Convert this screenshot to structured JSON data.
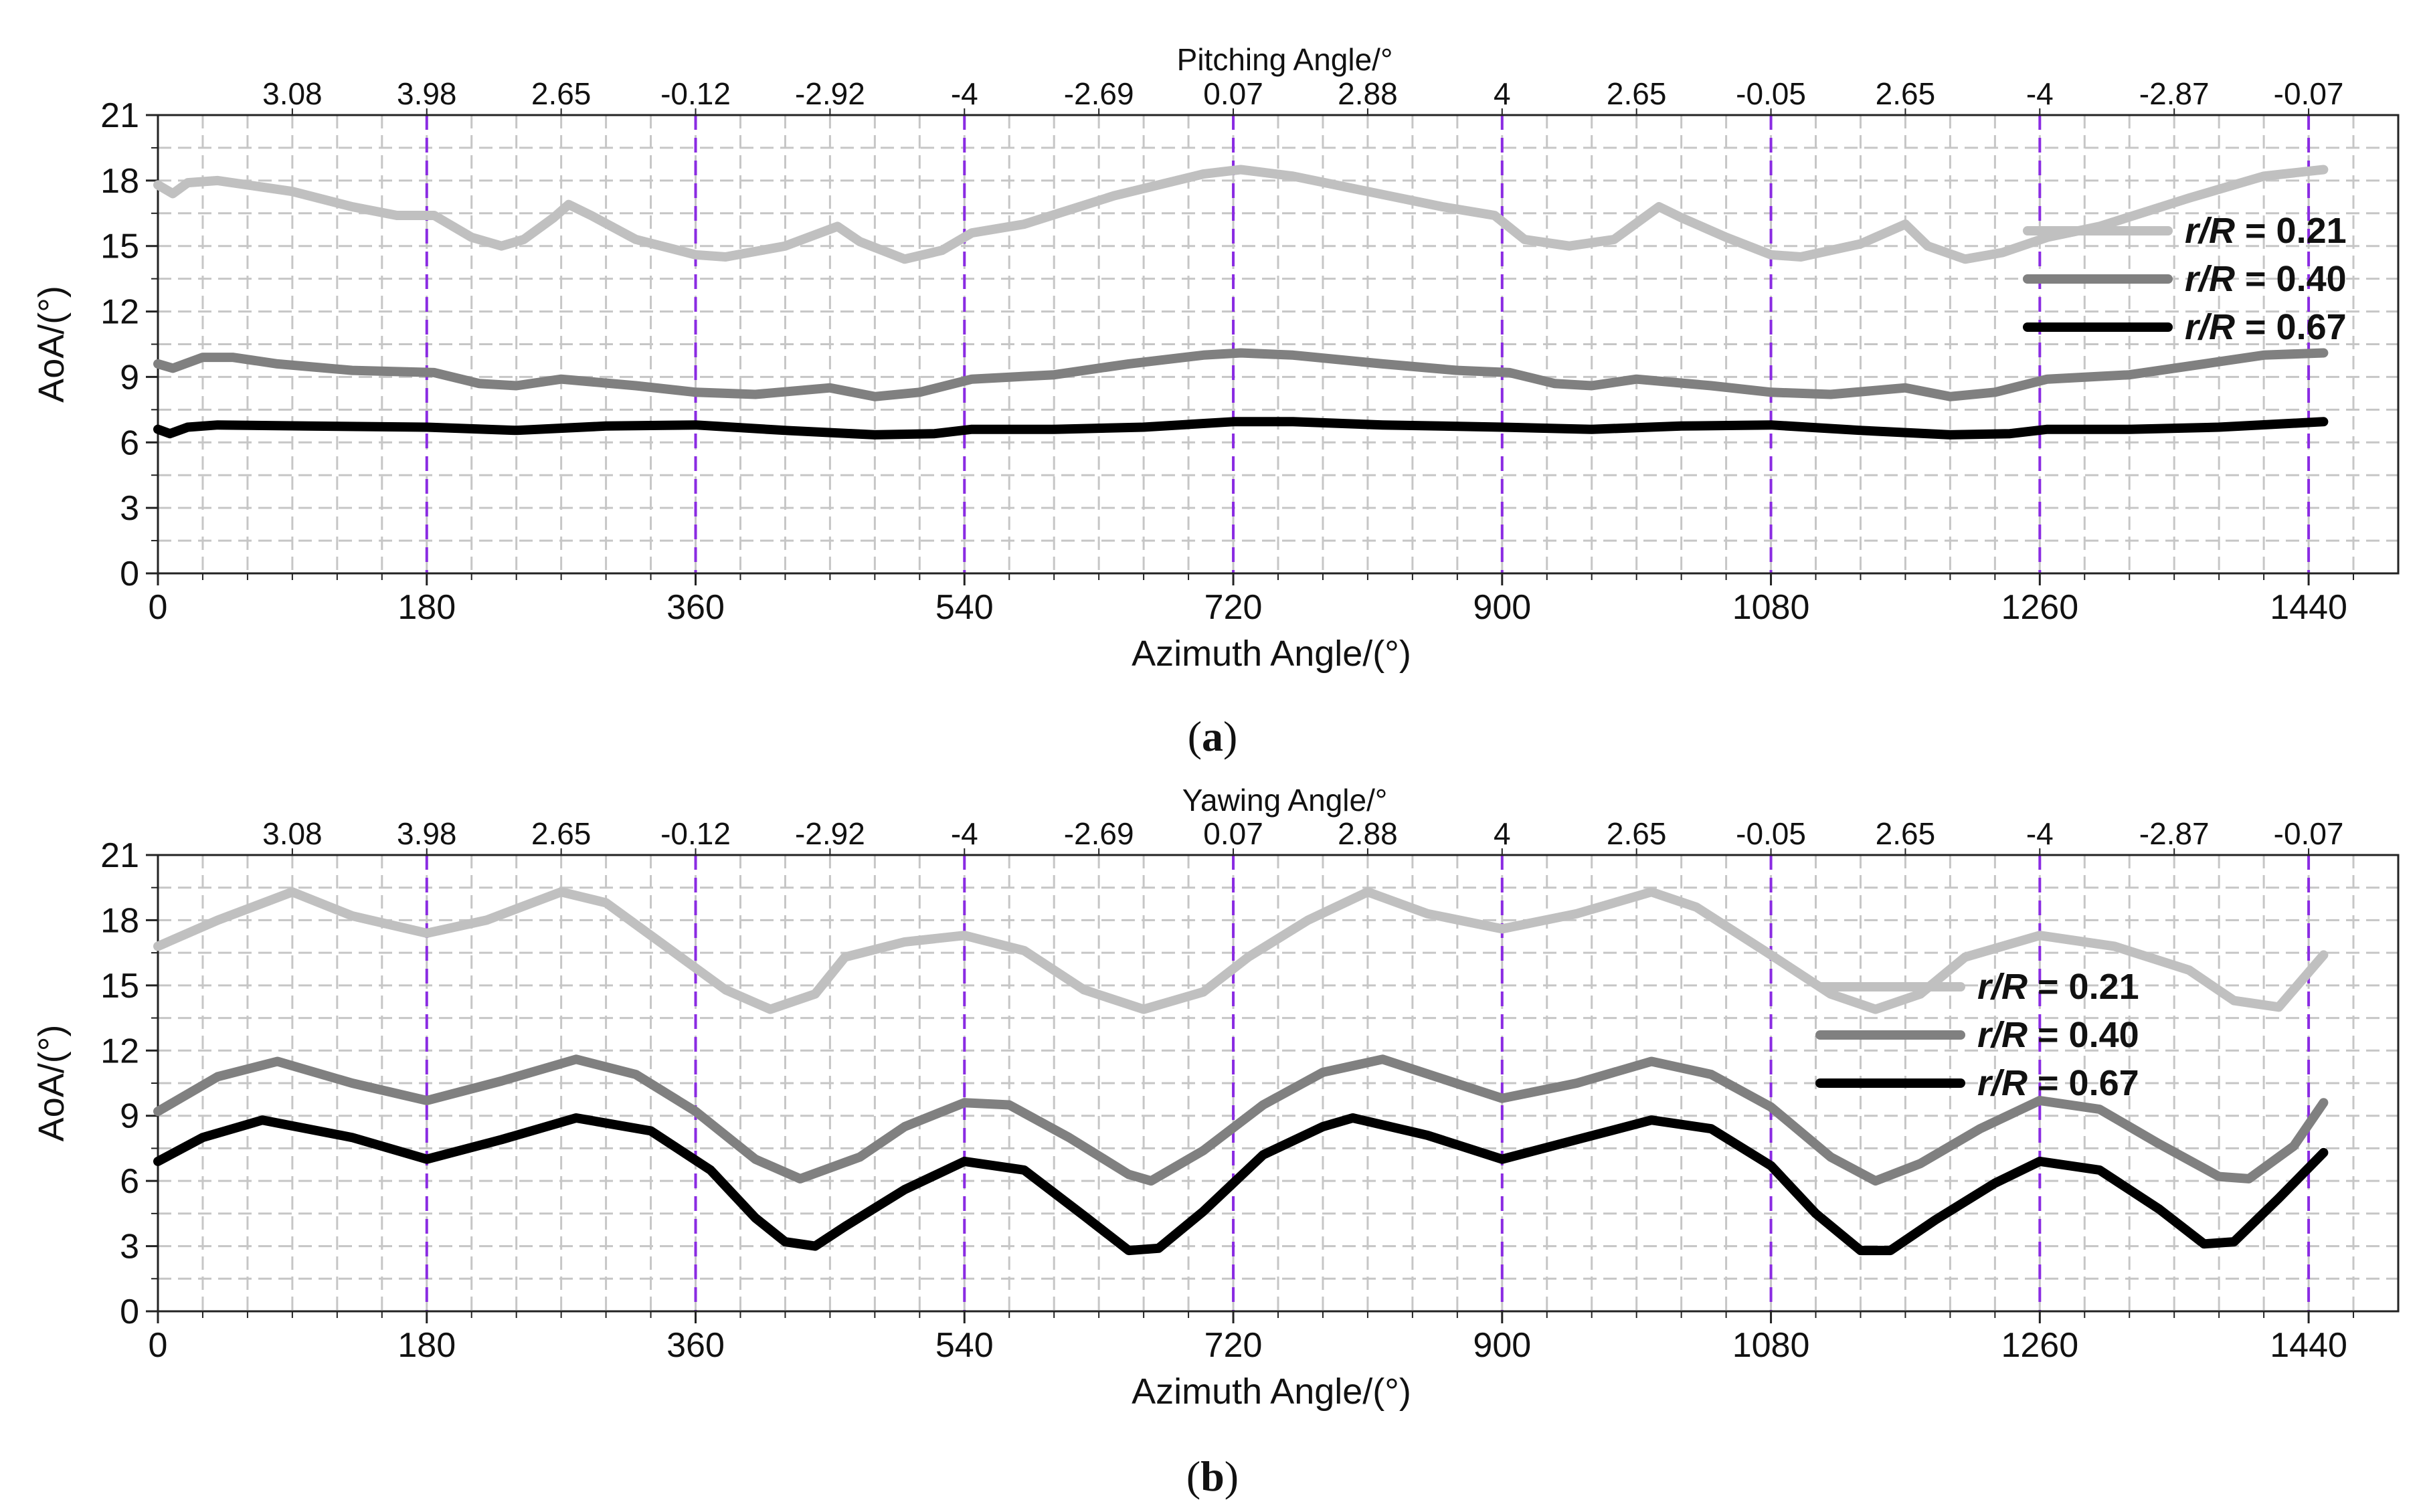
{
  "chart_data": [
    {
      "panel_label": "a",
      "type": "line",
      "title_top_axis": "Pitching Angle/°",
      "xlabel": "Azimuth Angle/(°)",
      "ylabel": "AoA/(°)",
      "xlim": [
        0,
        1500
      ],
      "ylim": [
        0,
        21
      ],
      "x_ticks": [
        "0",
        "180",
        "360",
        "540",
        "720",
        "900",
        "1080",
        "1260",
        "1440"
      ],
      "y_ticks": [
        "0",
        "3",
        "6",
        "9",
        "12",
        "15",
        "18",
        "21"
      ],
      "top_tick_labels": [
        "3.08",
        "3.98",
        "2.65",
        "-0.12",
        "-2.92",
        "-4",
        "-2.69",
        "0.07",
        "2.88",
        "4",
        "2.65",
        "-0.05",
        "2.65",
        "-4",
        "-2.87",
        "-0.07"
      ],
      "top_tick_positions": [
        90,
        180,
        270,
        360,
        450,
        540,
        630,
        720,
        810,
        900,
        990,
        1080,
        1170,
        1260,
        1350,
        1440
      ],
      "vertical_markers": [
        180,
        360,
        540,
        720,
        900,
        1080,
        1260,
        1440
      ],
      "grid": true,
      "legend_position": "right",
      "series": [
        {
          "name": "r/R = 0.21",
          "label_prefix": "r/R",
          "label_value": "= 0.21",
          "color": "#c0c0c0",
          "points": [
            [
              0,
              17.8
            ],
            [
              10,
              17.4
            ],
            [
              20,
              17.9
            ],
            [
              40,
              18.0
            ],
            [
              90,
              17.5
            ],
            [
              130,
              16.8
            ],
            [
              160,
              16.4
            ],
            [
              185,
              16.4
            ],
            [
              210,
              15.4
            ],
            [
              230,
              15.0
            ],
            [
              245,
              15.3
            ],
            [
              265,
              16.3
            ],
            [
              275,
              16.9
            ],
            [
              290,
              16.4
            ],
            [
              320,
              15.3
            ],
            [
              360,
              14.6
            ],
            [
              380,
              14.5
            ],
            [
              420,
              15.0
            ],
            [
              455,
              15.9
            ],
            [
              470,
              15.2
            ],
            [
              500,
              14.4
            ],
            [
              525,
              14.8
            ],
            [
              545,
              15.6
            ],
            [
              580,
              16.0
            ],
            [
              640,
              17.3
            ],
            [
              700,
              18.3
            ],
            [
              725,
              18.5
            ],
            [
              760,
              18.2
            ],
            [
              810,
              17.5
            ],
            [
              860,
              16.8
            ],
            [
              895,
              16.4
            ],
            [
              915,
              15.3
            ],
            [
              945,
              15.0
            ],
            [
              975,
              15.3
            ],
            [
              995,
              16.3
            ],
            [
              1005,
              16.8
            ],
            [
              1020,
              16.3
            ],
            [
              1050,
              15.4
            ],
            [
              1080,
              14.6
            ],
            [
              1100,
              14.5
            ],
            [
              1140,
              15.1
            ],
            [
              1170,
              16.0
            ],
            [
              1185,
              15.0
            ],
            [
              1210,
              14.4
            ],
            [
              1235,
              14.7
            ],
            [
              1265,
              15.4
            ],
            [
              1300,
              15.9
            ],
            [
              1360,
              17.2
            ],
            [
              1410,
              18.2
            ],
            [
              1450,
              18.5
            ]
          ]
        },
        {
          "name": "r/R = 0.40",
          "label_prefix": "r/R",
          "label_value": "= 0.40",
          "color": "#808080",
          "points": [
            [
              0,
              9.6
            ],
            [
              10,
              9.4
            ],
            [
              30,
              9.9
            ],
            [
              50,
              9.9
            ],
            [
              80,
              9.6
            ],
            [
              130,
              9.3
            ],
            [
              185,
              9.2
            ],
            [
              215,
              8.7
            ],
            [
              240,
              8.6
            ],
            [
              270,
              8.9
            ],
            [
              320,
              8.6
            ],
            [
              360,
              8.3
            ],
            [
              400,
              8.2
            ],
            [
              450,
              8.5
            ],
            [
              480,
              8.1
            ],
            [
              510,
              8.3
            ],
            [
              545,
              8.9
            ],
            [
              600,
              9.1
            ],
            [
              650,
              9.6
            ],
            [
              700,
              10.0
            ],
            [
              725,
              10.1
            ],
            [
              760,
              10.0
            ],
            [
              820,
              9.6
            ],
            [
              870,
              9.3
            ],
            [
              905,
              9.2
            ],
            [
              935,
              8.7
            ],
            [
              960,
              8.6
            ],
            [
              990,
              8.9
            ],
            [
              1040,
              8.6
            ],
            [
              1080,
              8.3
            ],
            [
              1120,
              8.2
            ],
            [
              1170,
              8.5
            ],
            [
              1200,
              8.1
            ],
            [
              1230,
              8.3
            ],
            [
              1265,
              8.9
            ],
            [
              1320,
              9.1
            ],
            [
              1370,
              9.6
            ],
            [
              1410,
              10.0
            ],
            [
              1450,
              10.1
            ]
          ]
        },
        {
          "name": "r/R = 0.67",
          "label_prefix": "r/R",
          "label_value": "= 0.67",
          "color": "#000000",
          "points": [
            [
              0,
              6.6
            ],
            [
              8,
              6.4
            ],
            [
              20,
              6.7
            ],
            [
              40,
              6.8
            ],
            [
              100,
              6.75
            ],
            [
              180,
              6.7
            ],
            [
              240,
              6.55
            ],
            [
              300,
              6.75
            ],
            [
              360,
              6.8
            ],
            [
              420,
              6.55
            ],
            [
              480,
              6.35
            ],
            [
              520,
              6.4
            ],
            [
              545,
              6.6
            ],
            [
              600,
              6.6
            ],
            [
              660,
              6.7
            ],
            [
              720,
              6.95
            ],
            [
              760,
              6.95
            ],
            [
              820,
              6.8
            ],
            [
              900,
              6.7
            ],
            [
              960,
              6.6
            ],
            [
              1020,
              6.75
            ],
            [
              1080,
              6.8
            ],
            [
              1140,
              6.55
            ],
            [
              1200,
              6.35
            ],
            [
              1240,
              6.4
            ],
            [
              1265,
              6.6
            ],
            [
              1320,
              6.6
            ],
            [
              1380,
              6.7
            ],
            [
              1450,
              6.95
            ]
          ]
        }
      ]
    },
    {
      "panel_label": "b",
      "type": "line",
      "title_top_axis": "Yawing Angle/°",
      "xlabel": "Azimuth Angle/(°)",
      "ylabel": "AoA/(°)",
      "xlim": [
        0,
        1500
      ],
      "ylim": [
        0,
        21
      ],
      "x_ticks": [
        "0",
        "180",
        "360",
        "540",
        "720",
        "900",
        "1080",
        "1260",
        "1440"
      ],
      "y_ticks": [
        "0",
        "3",
        "6",
        "9",
        "12",
        "15",
        "18",
        "21"
      ],
      "top_tick_labels": [
        "3.08",
        "3.98",
        "2.65",
        "-0.12",
        "-2.92",
        "-4",
        "-2.69",
        "0.07",
        "2.88",
        "4",
        "2.65",
        "-0.05",
        "2.65",
        "-4",
        "-2.87",
        "-0.07"
      ],
      "top_tick_positions": [
        90,
        180,
        270,
        360,
        450,
        540,
        630,
        720,
        810,
        900,
        990,
        1080,
        1170,
        1260,
        1350,
        1440
      ],
      "vertical_markers": [
        180,
        360,
        540,
        720,
        900,
        1080,
        1260,
        1440
      ],
      "grid": true,
      "legend_position": "right",
      "series": [
        {
          "name": "r/R = 0.21",
          "label_prefix": "r/R",
          "label_value": "= 0.21",
          "color": "#c0c0c0",
          "points": [
            [
              0,
              16.8
            ],
            [
              40,
              18.0
            ],
            [
              90,
              19.3
            ],
            [
              130,
              18.2
            ],
            [
              180,
              17.4
            ],
            [
              220,
              18.0
            ],
            [
              270,
              19.3
            ],
            [
              300,
              18.8
            ],
            [
              340,
              16.8
            ],
            [
              380,
              14.8
            ],
            [
              410,
              13.9
            ],
            [
              440,
              14.6
            ],
            [
              460,
              16.3
            ],
            [
              500,
              17.0
            ],
            [
              540,
              17.3
            ],
            [
              580,
              16.6
            ],
            [
              620,
              14.8
            ],
            [
              660,
              13.9
            ],
            [
              700,
              14.7
            ],
            [
              730,
              16.3
            ],
            [
              770,
              18.0
            ],
            [
              810,
              19.3
            ],
            [
              850,
              18.3
            ],
            [
              900,
              17.6
            ],
            [
              950,
              18.3
            ],
            [
              1000,
              19.3
            ],
            [
              1030,
              18.6
            ],
            [
              1080,
              16.4
            ],
            [
              1120,
              14.6
            ],
            [
              1150,
              13.9
            ],
            [
              1180,
              14.6
            ],
            [
              1210,
              16.3
            ],
            [
              1260,
              17.3
            ],
            [
              1310,
              16.8
            ],
            [
              1360,
              15.7
            ],
            [
              1390,
              14.3
            ],
            [
              1420,
              14.0
            ],
            [
              1450,
              16.4
            ]
          ]
        },
        {
          "name": "r/R = 0.40",
          "label_prefix": "r/R",
          "label_value": "= 0.40",
          "color": "#808080",
          "points": [
            [
              0,
              9.2
            ],
            [
              40,
              10.8
            ],
            [
              80,
              11.5
            ],
            [
              130,
              10.5
            ],
            [
              180,
              9.7
            ],
            [
              230,
              10.6
            ],
            [
              280,
              11.6
            ],
            [
              320,
              10.9
            ],
            [
              360,
              9.2
            ],
            [
              400,
              7.0
            ],
            [
              430,
              6.1
            ],
            [
              470,
              7.1
            ],
            [
              500,
              8.5
            ],
            [
              540,
              9.6
            ],
            [
              570,
              9.5
            ],
            [
              610,
              8.0
            ],
            [
              650,
              6.3
            ],
            [
              665,
              6.0
            ],
            [
              700,
              7.4
            ],
            [
              740,
              9.5
            ],
            [
              780,
              11.0
            ],
            [
              820,
              11.6
            ],
            [
              860,
              10.7
            ],
            [
              900,
              9.8
            ],
            [
              950,
              10.5
            ],
            [
              1000,
              11.5
            ],
            [
              1040,
              10.9
            ],
            [
              1080,
              9.4
            ],
            [
              1120,
              7.1
            ],
            [
              1150,
              6.0
            ],
            [
              1180,
              6.8
            ],
            [
              1220,
              8.4
            ],
            [
              1260,
              9.7
            ],
            [
              1300,
              9.3
            ],
            [
              1340,
              7.7
            ],
            [
              1380,
              6.2
            ],
            [
              1400,
              6.1
            ],
            [
              1430,
              7.6
            ],
            [
              1450,
              9.6
            ]
          ]
        },
        {
          "name": "r/R = 0.67",
          "label_prefix": "r/R",
          "label_value": "= 0.67",
          "color": "#000000",
          "points": [
            [
              0,
              6.9
            ],
            [
              30,
              8.0
            ],
            [
              70,
              8.8
            ],
            [
              130,
              8.0
            ],
            [
              180,
              7.0
            ],
            [
              230,
              7.9
            ],
            [
              280,
              8.9
            ],
            [
              330,
              8.3
            ],
            [
              370,
              6.5
            ],
            [
              400,
              4.3
            ],
            [
              420,
              3.2
            ],
            [
              440,
              3.0
            ],
            [
              460,
              3.9
            ],
            [
              500,
              5.6
            ],
            [
              540,
              6.9
            ],
            [
              580,
              6.5
            ],
            [
              620,
              4.4
            ],
            [
              650,
              2.8
            ],
            [
              670,
              2.9
            ],
            [
              700,
              4.6
            ],
            [
              740,
              7.2
            ],
            [
              780,
              8.5
            ],
            [
              800,
              8.9
            ],
            [
              850,
              8.1
            ],
            [
              900,
              7.0
            ],
            [
              950,
              7.9
            ],
            [
              1000,
              8.8
            ],
            [
              1040,
              8.4
            ],
            [
              1080,
              6.7
            ],
            [
              1110,
              4.5
            ],
            [
              1140,
              2.8
            ],
            [
              1160,
              2.8
            ],
            [
              1190,
              4.2
            ],
            [
              1230,
              5.9
            ],
            [
              1260,
              6.9
            ],
            [
              1300,
              6.5
            ],
            [
              1340,
              4.7
            ],
            [
              1370,
              3.1
            ],
            [
              1390,
              3.2
            ],
            [
              1420,
              5.2
            ],
            [
              1450,
              7.3
            ]
          ]
        }
      ]
    }
  ]
}
